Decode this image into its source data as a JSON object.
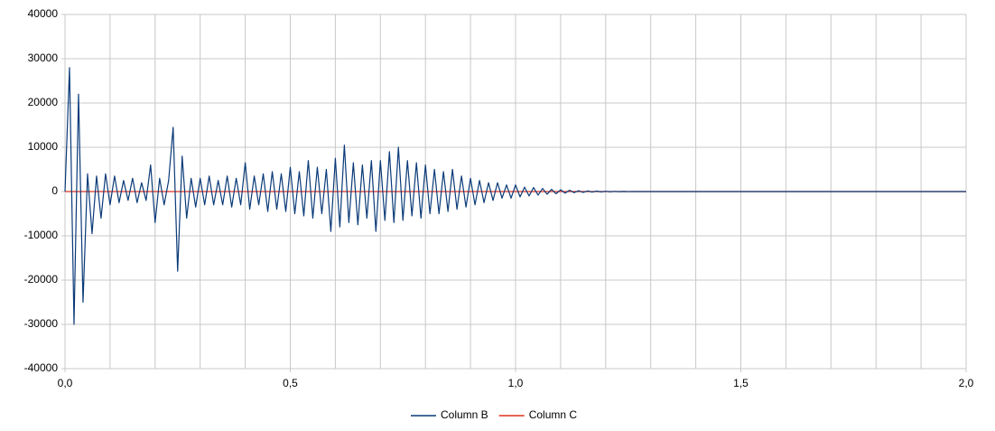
{
  "chart_data": {
    "type": "line",
    "xlim": [
      0,
      2
    ],
    "xticks": [
      {
        "value": 0,
        "label": "0,0"
      },
      {
        "value": 0.5,
        "label": "0,5"
      },
      {
        "value": 1,
        "label": "1,0"
      },
      {
        "value": 1.5,
        "label": "1,5"
      },
      {
        "value": 2,
        "label": "2,0"
      }
    ],
    "xgrid": [
      0.1,
      0.2,
      0.3,
      0.4,
      0.6,
      0.7,
      0.8,
      0.9,
      1.1,
      1.2,
      1.3,
      1.4,
      1.6,
      1.7,
      1.8,
      1.9
    ],
    "ylim": [
      -40000,
      40000
    ],
    "yticks": [
      40000,
      30000,
      20000,
      10000,
      0,
      -10000,
      -20000,
      -30000,
      -40000
    ],
    "grid": true,
    "legend": "bottom",
    "series": [
      {
        "name": "Column C",
        "color": "#e0301e",
        "x": [
          0,
          2
        ],
        "values": [
          0,
          0
        ]
      },
      {
        "name": "Column B",
        "color": "#0a3a78",
        "x": [
          0,
          0.01,
          0.02,
          0.03,
          0.04,
          0.05,
          0.06,
          0.07,
          0.08,
          0.09,
          0.1,
          0.11,
          0.12,
          0.13,
          0.14,
          0.15,
          0.16,
          0.17,
          0.18,
          0.19,
          0.2,
          0.21,
          0.22,
          0.23,
          0.24,
          0.25,
          0.26,
          0.27,
          0.28,
          0.29,
          0.3,
          0.31,
          0.32,
          0.33,
          0.34,
          0.35,
          0.36,
          0.37,
          0.38,
          0.39,
          0.4,
          0.41,
          0.42,
          0.43,
          0.44,
          0.45,
          0.46,
          0.47,
          0.48,
          0.49,
          0.5,
          0.51,
          0.52,
          0.53,
          0.54,
          0.55,
          0.56,
          0.57,
          0.58,
          0.59,
          0.6,
          0.61,
          0.62,
          0.63,
          0.64,
          0.65,
          0.66,
          0.67,
          0.68,
          0.69,
          0.7,
          0.71,
          0.72,
          0.73,
          0.74,
          0.75,
          0.76,
          0.77,
          0.78,
          0.79,
          0.8,
          0.81,
          0.82,
          0.83,
          0.84,
          0.85,
          0.86,
          0.87,
          0.88,
          0.89,
          0.9,
          0.91,
          0.92,
          0.93,
          0.94,
          0.95,
          0.96,
          0.97,
          0.98,
          0.99,
          1,
          1.01,
          1.02,
          1.03,
          1.04,
          1.05,
          1.06,
          1.07,
          1.08,
          1.09,
          1.1,
          1.11,
          1.12,
          1.13,
          1.14,
          1.15,
          1.16,
          1.17,
          1.18,
          1.19,
          1.2,
          1.21,
          1.22,
          1.23,
          1.24,
          1.25,
          1.26,
          2
        ],
        "values": [
          0,
          28000,
          -30000,
          22000,
          -25000,
          4000,
          -9500,
          3500,
          -6000,
          4000,
          -3000,
          3500,
          -2500,
          2500,
          -2000,
          3000,
          -2500,
          2000,
          -2000,
          6000,
          -7000,
          3000,
          -3000,
          2500,
          14500,
          -18000,
          8000,
          -6000,
          3000,
          -3500,
          3000,
          -3000,
          3500,
          -3000,
          2500,
          -3000,
          3500,
          -3500,
          3000,
          -3000,
          6500,
          -4000,
          3500,
          -3000,
          4000,
          -4500,
          4500,
          -4000,
          4000,
          -4500,
          5500,
          -5000,
          4500,
          -5500,
          7000,
          -6000,
          5500,
          -5000,
          5000,
          -9000,
          7500,
          -8000,
          10500,
          -7000,
          6500,
          -7500,
          6000,
          -6000,
          7000,
          -9000,
          7000,
          -6500,
          9000,
          -7000,
          10000,
          -6500,
          7000,
          -5500,
          6500,
          -6000,
          6000,
          -5000,
          5000,
          -5000,
          4500,
          -4500,
          5000,
          -4000,
          3500,
          -3500,
          3000,
          -3000,
          2500,
          -2500,
          2000,
          -2000,
          2000,
          -1500,
          1500,
          -1500,
          1500,
          -1200,
          1000,
          -1000,
          900,
          -800,
          700,
          -600,
          500,
          -500,
          400,
          -350,
          300,
          -250,
          200,
          -200,
          150,
          -120,
          100,
          -80,
          60,
          -50,
          40,
          -30,
          20,
          -10,
          0,
          0
        ]
      }
    ]
  }
}
